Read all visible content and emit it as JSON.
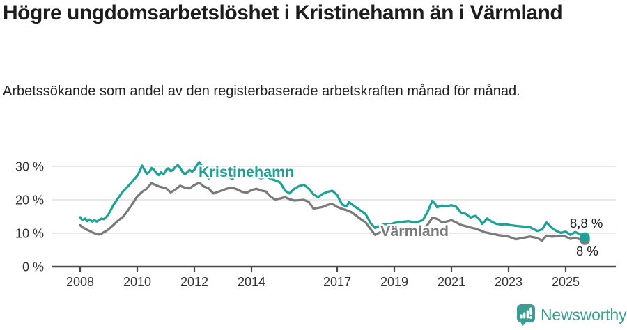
{
  "header": {
    "title": "Högre ungdomsarbetslöshet i Kristinehamn än i Värmland",
    "subtitle": "Arbetssökande som andel av den registerbaserade arbetskraften månad för månad."
  },
  "footer": {
    "brand": "Newsworthy",
    "brand_icon": "newsworthy-chart-bubble-icon"
  },
  "colors": {
    "kristinehamn": "#1ca297",
    "varmland": "#7a7a7a",
    "axis": "#4a4a4a",
    "grid": "#d9d9d9",
    "tick_text": "#333333",
    "annotation_text": "#1a1a1a",
    "brand_teal": "#3c9d94"
  },
  "chart_data": {
    "type": "line",
    "title": "Högre ungdomsarbetslöshet i Kristinehamn än i Värmland",
    "subtitle": "Arbetssökande som andel av den registerbaserade arbetskraften månad för månad.",
    "unit": "%",
    "grid": "horizontal",
    "legend": "inline-labels",
    "x_axis": {
      "label": "",
      "ticks": [
        "2008",
        "2010",
        "2012",
        "2014",
        "2017",
        "2019",
        "2021",
        "2023",
        "2025"
      ],
      "tick_values": [
        2008,
        2010,
        2012,
        2014,
        2017,
        2019,
        2021,
        2023,
        2025
      ],
      "range": [
        2007.4,
        2026.3
      ]
    },
    "y_axis": {
      "label": "",
      "ticks": [
        "0 %",
        "10 %",
        "20 %",
        "30 %"
      ],
      "tick_values": [
        0,
        10,
        20,
        30
      ],
      "range": [
        0,
        33
      ]
    },
    "series": [
      {
        "name": "Kristinehamn",
        "color": "#1ca297",
        "end_label": "8,8 %",
        "end_value": 8.8,
        "points": [
          [
            2008.0,
            14.8
          ],
          [
            2008.08,
            13.9
          ],
          [
            2008.17,
            14.4
          ],
          [
            2008.25,
            13.6
          ],
          [
            2008.33,
            14.1
          ],
          [
            2008.42,
            13.5
          ],
          [
            2008.5,
            13.9
          ],
          [
            2008.58,
            13.5
          ],
          [
            2008.67,
            14.0
          ],
          [
            2008.75,
            14.4
          ],
          [
            2008.83,
            14.2
          ],
          [
            2008.92,
            14.9
          ],
          [
            2009.0,
            15.8
          ],
          [
            2009.17,
            18.5
          ],
          [
            2009.33,
            20.5
          ],
          [
            2009.5,
            22.5
          ],
          [
            2009.67,
            24.0
          ],
          [
            2009.83,
            25.5
          ],
          [
            2010.0,
            27.2
          ],
          [
            2010.08,
            28.5
          ],
          [
            2010.17,
            30.2
          ],
          [
            2010.25,
            29.0
          ],
          [
            2010.33,
            27.8
          ],
          [
            2010.42,
            28.3
          ],
          [
            2010.5,
            29.5
          ],
          [
            2010.58,
            29.0
          ],
          [
            2010.67,
            28.0
          ],
          [
            2010.75,
            27.4
          ],
          [
            2010.83,
            28.2
          ],
          [
            2010.92,
            27.6
          ],
          [
            2011.0,
            28.8
          ],
          [
            2011.08,
            29.4
          ],
          [
            2011.17,
            28.6
          ],
          [
            2011.25,
            28.9
          ],
          [
            2011.33,
            29.8
          ],
          [
            2011.42,
            30.4
          ],
          [
            2011.5,
            29.6
          ],
          [
            2011.58,
            28.4
          ],
          [
            2011.67,
            27.6
          ],
          [
            2011.75,
            28.3
          ],
          [
            2011.83,
            28.9
          ],
          [
            2011.92,
            28.4
          ],
          [
            2012.0,
            29.0
          ],
          [
            2012.08,
            30.3
          ],
          [
            2012.17,
            31.3
          ],
          [
            2012.25,
            30.2
          ],
          [
            2012.33,
            29.6
          ],
          [
            2012.42,
            28.0
          ],
          [
            2012.5,
            26.4
          ],
          [
            2012.58,
            27.2
          ],
          [
            2012.67,
            28.3
          ],
          [
            2012.75,
            28.8
          ],
          [
            2012.83,
            28.1
          ],
          [
            2012.92,
            27.6
          ],
          [
            2013.0,
            28.4
          ],
          [
            2013.17,
            27.0
          ],
          [
            2013.33,
            26.2
          ],
          [
            2013.5,
            27.5
          ],
          [
            2013.67,
            28.6
          ],
          [
            2013.83,
            28.0
          ],
          [
            2014.0,
            28.8
          ],
          [
            2014.17,
            27.2
          ],
          [
            2014.33,
            26.4
          ],
          [
            2014.5,
            27.0
          ],
          [
            2014.67,
            26.3
          ],
          [
            2014.83,
            25.8
          ],
          [
            2015.0,
            25.2
          ],
          [
            2015.17,
            22.8
          ],
          [
            2015.33,
            21.9
          ],
          [
            2015.5,
            23.3
          ],
          [
            2015.67,
            24.1
          ],
          [
            2015.83,
            24.5
          ],
          [
            2016.0,
            23.4
          ],
          [
            2016.17,
            21.6
          ],
          [
            2016.33,
            20.8
          ],
          [
            2016.5,
            21.8
          ],
          [
            2016.67,
            22.4
          ],
          [
            2016.83,
            22.7
          ],
          [
            2017.0,
            21.4
          ],
          [
            2017.17,
            18.6
          ],
          [
            2017.33,
            18.0
          ],
          [
            2017.42,
            19.3
          ],
          [
            2017.58,
            18.2
          ],
          [
            2017.75,
            17.2
          ],
          [
            2017.92,
            16.2
          ],
          [
            2018.0,
            15.7
          ],
          [
            2018.17,
            13.0
          ],
          [
            2018.33,
            11.6
          ],
          [
            2018.5,
            12.2
          ],
          [
            2018.67,
            12.8
          ],
          [
            2018.83,
            12.5
          ],
          [
            2019.0,
            13.1
          ],
          [
            2019.25,
            13.4
          ],
          [
            2019.5,
            13.6
          ],
          [
            2019.75,
            13.2
          ],
          [
            2020.0,
            13.9
          ],
          [
            2020.17,
            16.5
          ],
          [
            2020.33,
            19.7
          ],
          [
            2020.42,
            18.9
          ],
          [
            2020.5,
            17.8
          ],
          [
            2020.67,
            18.3
          ],
          [
            2020.83,
            18.1
          ],
          [
            2021.0,
            18.4
          ],
          [
            2021.17,
            17.9
          ],
          [
            2021.33,
            16.2
          ],
          [
            2021.5,
            15.8
          ],
          [
            2021.67,
            14.7
          ],
          [
            2021.83,
            15.2
          ],
          [
            2022.0,
            14.0
          ],
          [
            2022.08,
            12.8
          ],
          [
            2022.25,
            14.4
          ],
          [
            2022.42,
            13.4
          ],
          [
            2022.58,
            12.8
          ],
          [
            2022.75,
            12.6
          ],
          [
            2022.92,
            12.7
          ],
          [
            2023.0,
            12.5
          ],
          [
            2023.25,
            12.2
          ],
          [
            2023.5,
            12.0
          ],
          [
            2023.75,
            11.8
          ],
          [
            2024.0,
            10.7
          ],
          [
            2024.17,
            11.1
          ],
          [
            2024.33,
            13.2
          ],
          [
            2024.5,
            11.7
          ],
          [
            2024.67,
            10.7
          ],
          [
            2024.83,
            10.1
          ],
          [
            2025.0,
            10.5
          ],
          [
            2025.17,
            9.5
          ],
          [
            2025.33,
            10.4
          ],
          [
            2025.5,
            9.7
          ],
          [
            2025.67,
            8.8
          ]
        ]
      },
      {
        "name": "Värmland",
        "color": "#7a7a7a",
        "end_label": "8 %",
        "end_value": 8.0,
        "points": [
          [
            2008.0,
            12.4
          ],
          [
            2008.08,
            11.8
          ],
          [
            2008.17,
            11.4
          ],
          [
            2008.25,
            11.0
          ],
          [
            2008.33,
            10.7
          ],
          [
            2008.42,
            10.3
          ],
          [
            2008.5,
            10.0
          ],
          [
            2008.58,
            9.8
          ],
          [
            2008.67,
            9.6
          ],
          [
            2008.75,
            9.9
          ],
          [
            2008.83,
            10.3
          ],
          [
            2008.92,
            10.7
          ],
          [
            2009.0,
            11.2
          ],
          [
            2009.17,
            12.5
          ],
          [
            2009.33,
            13.8
          ],
          [
            2009.5,
            14.9
          ],
          [
            2009.67,
            16.8
          ],
          [
            2009.83,
            18.8
          ],
          [
            2010.0,
            21.0
          ],
          [
            2010.17,
            22.4
          ],
          [
            2010.33,
            23.3
          ],
          [
            2010.5,
            25.0
          ],
          [
            2010.67,
            24.3
          ],
          [
            2010.83,
            23.8
          ],
          [
            2011.0,
            23.5
          ],
          [
            2011.17,
            22.2
          ],
          [
            2011.33,
            23.0
          ],
          [
            2011.5,
            24.2
          ],
          [
            2011.67,
            23.6
          ],
          [
            2011.83,
            23.4
          ],
          [
            2012.0,
            24.4
          ],
          [
            2012.17,
            25.1
          ],
          [
            2012.33,
            24.0
          ],
          [
            2012.5,
            23.4
          ],
          [
            2012.67,
            21.9
          ],
          [
            2012.83,
            22.4
          ],
          [
            2013.0,
            22.9
          ],
          [
            2013.17,
            23.4
          ],
          [
            2013.33,
            23.6
          ],
          [
            2013.5,
            23.1
          ],
          [
            2013.67,
            22.4
          ],
          [
            2013.83,
            22.1
          ],
          [
            2014.0,
            22.9
          ],
          [
            2014.17,
            23.3
          ],
          [
            2014.33,
            22.8
          ],
          [
            2014.5,
            22.5
          ],
          [
            2014.67,
            20.9
          ],
          [
            2014.83,
            20.1
          ],
          [
            2015.0,
            20.4
          ],
          [
            2015.17,
            20.8
          ],
          [
            2015.33,
            20.2
          ],
          [
            2015.5,
            19.8
          ],
          [
            2015.67,
            19.9
          ],
          [
            2015.83,
            20.0
          ],
          [
            2016.0,
            19.4
          ],
          [
            2016.17,
            17.4
          ],
          [
            2016.33,
            17.6
          ],
          [
            2016.5,
            17.9
          ],
          [
            2016.67,
            18.5
          ],
          [
            2016.83,
            18.8
          ],
          [
            2017.0,
            17.9
          ],
          [
            2017.17,
            17.3
          ],
          [
            2017.33,
            16.9
          ],
          [
            2017.5,
            16.3
          ],
          [
            2017.67,
            15.2
          ],
          [
            2017.83,
            14.2
          ],
          [
            2018.0,
            13.2
          ],
          [
            2018.17,
            11.2
          ],
          [
            2018.33,
            9.5
          ],
          [
            2018.5,
            10.3
          ],
          [
            2018.67,
            10.6
          ],
          [
            2018.83,
            10.2
          ],
          [
            2019.0,
            10.1
          ],
          [
            2019.25,
            10.4
          ],
          [
            2019.5,
            10.5
          ],
          [
            2019.75,
            10.8
          ],
          [
            2020.0,
            11.1
          ],
          [
            2020.17,
            12.6
          ],
          [
            2020.33,
            14.6
          ],
          [
            2020.5,
            14.3
          ],
          [
            2020.67,
            13.2
          ],
          [
            2020.83,
            13.5
          ],
          [
            2021.0,
            13.9
          ],
          [
            2021.17,
            13.2
          ],
          [
            2021.33,
            12.5
          ],
          [
            2021.5,
            12.1
          ],
          [
            2021.67,
            11.7
          ],
          [
            2021.83,
            11.4
          ],
          [
            2022.0,
            10.9
          ],
          [
            2022.17,
            10.3
          ],
          [
            2022.33,
            10.0
          ],
          [
            2022.5,
            9.7
          ],
          [
            2022.67,
            9.4
          ],
          [
            2022.83,
            9.2
          ],
          [
            2023.0,
            9.0
          ],
          [
            2023.25,
            8.2
          ],
          [
            2023.5,
            8.6
          ],
          [
            2023.75,
            9.0
          ],
          [
            2024.0,
            8.6
          ],
          [
            2024.17,
            7.8
          ],
          [
            2024.33,
            9.3
          ],
          [
            2024.5,
            9.0
          ],
          [
            2024.67,
            9.1
          ],
          [
            2024.83,
            9.2
          ],
          [
            2025.0,
            9.0
          ],
          [
            2025.17,
            8.3
          ],
          [
            2025.33,
            8.6
          ],
          [
            2025.5,
            8.2
          ],
          [
            2025.67,
            8.0
          ]
        ]
      }
    ]
  }
}
